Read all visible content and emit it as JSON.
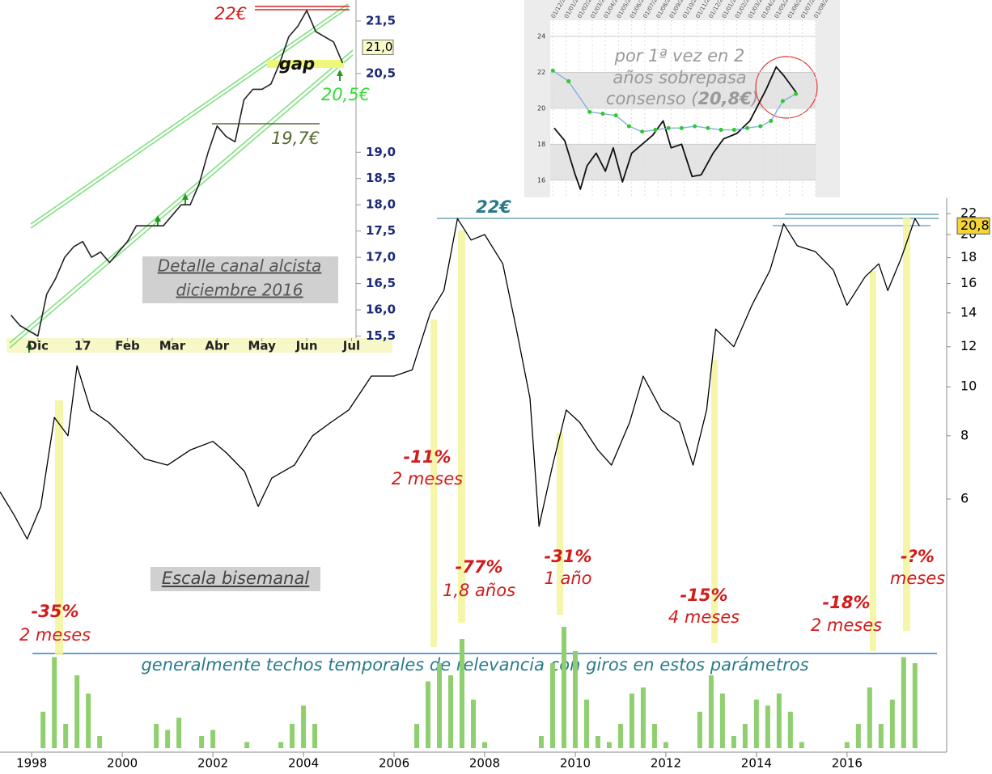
{
  "chart_data": [
    {
      "type": "line",
      "color": "#000000",
      "log": true,
      "x": [
        1997.3,
        1997.6,
        1997.9,
        1998.2,
        1998.5,
        1998.8,
        1999.0,
        1999.3,
        1999.7,
        2000.0,
        2000.5,
        2001.0,
        2001.5,
        2002.0,
        2002.3,
        2002.7,
        2003.0,
        2003.3,
        2003.8,
        2004.2,
        2004.6,
        2005.0,
        2005.5,
        2006.0,
        2006.4,
        2006.8,
        2007.1,
        2007.4,
        2007.7,
        2008.0,
        2008.4,
        2008.7,
        2009.0,
        2009.2,
        2009.5,
        2009.8,
        2010.1,
        2010.5,
        2010.8,
        2011.2,
        2011.5,
        2011.9,
        2012.3,
        2012.6,
        2012.9,
        2013.1,
        2013.5,
        2013.9,
        2014.3,
        2014.6,
        2014.9,
        2015.3,
        2015.7,
        2016.0,
        2016.4,
        2016.7,
        2016.9,
        2017.2,
        2017.5,
        2017.6
      ],
      "values": [
        6.2,
        5.6,
        5.0,
        5.8,
        8.7,
        8.0,
        11.0,
        9.0,
        8.5,
        8.0,
        7.2,
        7.0,
        7.5,
        7.8,
        7.4,
        6.8,
        5.8,
        6.6,
        7.0,
        8.0,
        8.5,
        9.0,
        10.5,
        10.5,
        10.8,
        14.0,
        15.5,
        21.5,
        19.5,
        20.0,
        17.5,
        13.0,
        9.5,
        5.3,
        7.0,
        9.0,
        8.5,
        7.5,
        7.0,
        8.5,
        10.5,
        9.0,
        8.5,
        7.0,
        9.0,
        13.0,
        12.0,
        14.5,
        17.0,
        21.0,
        19.0,
        18.5,
        17.0,
        14.5,
        16.5,
        17.5,
        15.5,
        18.0,
        21.5,
        20.8
      ],
      "xlim": [
        1997.3,
        2018.2
      ],
      "xticks": [
        1998,
        2000,
        2002,
        2004,
        2006,
        2008,
        2010,
        2012,
        2014,
        2016
      ],
      "ylim": [
        4.42,
        23.6
      ],
      "yticks": [
        6,
        8,
        10,
        12,
        14,
        16,
        18,
        20,
        22
      ],
      "price_tag": {
        "value": 20.8,
        "label": "20,8"
      },
      "annotations": [
        "22€",
        "-11%",
        "2 meses",
        "-77%",
        "1,8 años",
        "-31%",
        "1 año",
        "-35%",
        "2 meses",
        "-15%",
        "4 meses",
        "-18%",
        "2 meses",
        "-?%",
        "meses",
        "Escala bisemanal",
        "generalmente techos temporales de relevancia con giros en estos parámetros"
      ]
    },
    {
      "type": "bar",
      "color": "#8fcf6f",
      "x": [
        1997.5,
        1997.75,
        1998.0,
        1998.25,
        1998.5,
        1998.75,
        1999.0,
        1999.25,
        1999.5,
        1999.75,
        2000.0,
        2000.25,
        2000.5,
        2000.75,
        2001.0,
        2001.25,
        2001.5,
        2001.75,
        2002.0,
        2002.25,
        2002.5,
        2002.75,
        2003.0,
        2003.25,
        2003.5,
        2003.75,
        2004.0,
        2004.25,
        2004.5,
        2004.75,
        2005.0,
        2005.25,
        2005.5,
        2005.75,
        2006.0,
        2006.25,
        2006.5,
        2006.75,
        2007.0,
        2007.25,
        2007.5,
        2007.75,
        2008.0,
        2008.25,
        2008.5,
        2008.75,
        2009.0,
        2009.25,
        2009.5,
        2009.75,
        2010.0,
        2010.25,
        2010.5,
        2010.75,
        2011.0,
        2011.25,
        2011.5,
        2011.75,
        2012.0,
        2012.25,
        2012.5,
        2012.75,
        2013.0,
        2013.25,
        2013.5,
        2013.75,
        2014.0,
        2014.25,
        2014.5,
        2014.75,
        2015.0,
        2015.25,
        2015.5,
        2015.75,
        2016.0,
        2016.25,
        2016.5,
        2016.75,
        2017.0,
        2017.25,
        2017.5
      ],
      "values": [
        0,
        0,
        0,
        30,
        75,
        20,
        60,
        45,
        10,
        0,
        0,
        0,
        0,
        20,
        15,
        25,
        0,
        10,
        15,
        0,
        0,
        5,
        0,
        0,
        5,
        20,
        35,
        20,
        0,
        0,
        0,
        0,
        0,
        0,
        0,
        0,
        20,
        55,
        70,
        60,
        90,
        40,
        5,
        0,
        0,
        0,
        0,
        10,
        70,
        100,
        80,
        40,
        10,
        5,
        20,
        45,
        50,
        20,
        5,
        0,
        0,
        30,
        60,
        45,
        10,
        20,
        40,
        35,
        45,
        30,
        5,
        0,
        0,
        0,
        5,
        20,
        50,
        20,
        40,
        75,
        70
      ],
      "xlim": [
        1997.3,
        2018.2
      ],
      "ylim": [
        0,
        100
      ]
    },
    {
      "type": "line",
      "color": "#222222",
      "title": "Detalle canal alcista",
      "subtitle": "diciembre 2016",
      "x": [
        -0.6,
        -0.4,
        -0.2,
        0,
        0.2,
        0.4,
        0.6,
        0.8,
        1.0,
        1.2,
        1.4,
        1.6,
        1.8,
        2.0,
        2.2,
        2.4,
        2.6,
        2.8,
        3.0,
        3.2,
        3.4,
        3.6,
        3.8,
        4.0,
        4.2,
        4.4,
        4.6,
        4.8,
        5.0,
        5.2,
        5.4,
        5.6,
        5.8,
        6.0,
        6.2,
        6.4,
        6.6,
        6.8
      ],
      "values": [
        15.9,
        15.7,
        15.6,
        15.5,
        16.3,
        16.6,
        17.0,
        17.2,
        17.3,
        17.0,
        17.1,
        16.9,
        17.1,
        17.3,
        17.6,
        17.6,
        17.6,
        17.6,
        17.8,
        18.0,
        18.0,
        18.4,
        19.0,
        19.5,
        19.3,
        19.2,
        20.0,
        20.2,
        20.2,
        20.3,
        20.7,
        21.2,
        21.4,
        21.7,
        21.3,
        21.2,
        21.1,
        20.7
      ],
      "xlim": [
        -0.7,
        7.1
      ],
      "xticks": [
        {
          "value": 0,
          "label": "Dic"
        },
        {
          "value": 1,
          "label": "17"
        },
        {
          "value": 2,
          "label": "Feb"
        },
        {
          "value": 3,
          "label": "Mar"
        },
        {
          "value": 4,
          "label": "Abr"
        },
        {
          "value": 5,
          "label": "May"
        },
        {
          "value": 6,
          "label": "Jun"
        },
        {
          "value": 7,
          "label": "Jul"
        }
      ],
      "ylim": [
        15.2,
        21.9
      ],
      "yticks": [
        {
          "value": 15.5,
          "label": "15,5"
        },
        {
          "value": 16,
          "label": "16,0"
        },
        {
          "value": 16.5,
          "label": "16,5"
        },
        {
          "value": 17,
          "label": "17,0"
        },
        {
          "value": 17.5,
          "label": "17,5"
        },
        {
          "value": 18,
          "label": "18,0"
        },
        {
          "value": 18.5,
          "label": "18,5"
        },
        {
          "value": 19,
          "label": "19,0"
        },
        {
          "value": 20.5,
          "label": "20,5"
        },
        {
          "value": 21.5,
          "label": "21,5"
        }
      ],
      "price_tag": {
        "value": 21.0,
        "label": "21,0"
      },
      "annotations": [
        "22€",
        "gap",
        "20,5€",
        "19,7€"
      ]
    },
    {
      "type": "line",
      "series": [
        {
          "color": "#111111",
          "x": [
            0.1,
            0.9,
            1.7,
            2.1,
            2.6,
            3.3,
            4.0,
            4.6,
            5.3,
            6.0,
            6.8,
            7.6,
            8.4,
            9.0,
            9.8,
            10.6,
            11.3,
            12.2,
            13.0,
            14.0,
            15.0,
            16.2,
            17.0,
            17.6,
            18.6
          ],
          "values": [
            18.9,
            18.2,
            16.3,
            15.5,
            16.8,
            17.5,
            16.5,
            17.8,
            15.9,
            17.5,
            18.0,
            18.5,
            19.3,
            17.8,
            18.0,
            16.2,
            16.3,
            17.5,
            18.3,
            18.6,
            19.3,
            21.0,
            22.3,
            21.8,
            20.8
          ]
        },
        {
          "color": "#7fb2e0",
          "x": [
            0,
            1.2,
            2.8,
            3.8,
            4.8,
            5.8,
            6.8,
            7.8,
            8.8,
            9.8,
            10.8,
            11.8,
            12.8,
            13.8,
            14.8,
            15.8,
            16.6,
            17.5,
            18.5
          ],
          "values": [
            22.1,
            21.5,
            19.8,
            19.7,
            19.6,
            19.0,
            18.7,
            18.8,
            18.9,
            18.9,
            19.0,
            18.9,
            18.8,
            18.8,
            18.9,
            19.0,
            19.3,
            20.4,
            20.8
          ]
        }
      ],
      "xlim": [
        -0.2,
        20
      ],
      "xticks": [
        {
          "value": 0,
          "label": "01/12/2015"
        },
        {
          "value": 1,
          "label": "01/01/2016"
        },
        {
          "value": 2,
          "label": "01/02/2016"
        },
        {
          "value": 3,
          "label": "01/03/2016"
        },
        {
          "value": 4,
          "label": "01/04/2016"
        },
        {
          "value": 5,
          "label": "01/05/2016"
        },
        {
          "value": 6,
          "label": "01/06/2016"
        },
        {
          "value": 7,
          "label": "01/07/2016"
        },
        {
          "value": 8,
          "label": "01/08/2016"
        },
        {
          "value": 9,
          "label": "01/09/2016"
        },
        {
          "value": 10,
          "label": "01/10/2016"
        },
        {
          "value": 11,
          "label": "01/11/2016"
        },
        {
          "value": 12,
          "label": "01/12/2016"
        },
        {
          "value": 13,
          "label": "01/01/2017"
        },
        {
          "value": 14,
          "label": "01/02/2017"
        },
        {
          "value": 15,
          "label": "01/03/2017"
        },
        {
          "value": 16,
          "label": "01/04/2017"
        },
        {
          "value": 17,
          "label": "01/05/2017"
        },
        {
          "value": 18,
          "label": "01/06/2017"
        },
        {
          "value": 19,
          "label": "01/07/2017"
        },
        {
          "value": 20,
          "label": "01/08/2017"
        }
      ],
      "ylim": [
        15,
        24.9
      ],
      "yticks": [
        16,
        18,
        20,
        22,
        24
      ],
      "annotations": [
        "por 1ª vez en 2",
        "años sobrepasa",
        "consenso (",
        "20,8€",
        ")"
      ]
    }
  ]
}
